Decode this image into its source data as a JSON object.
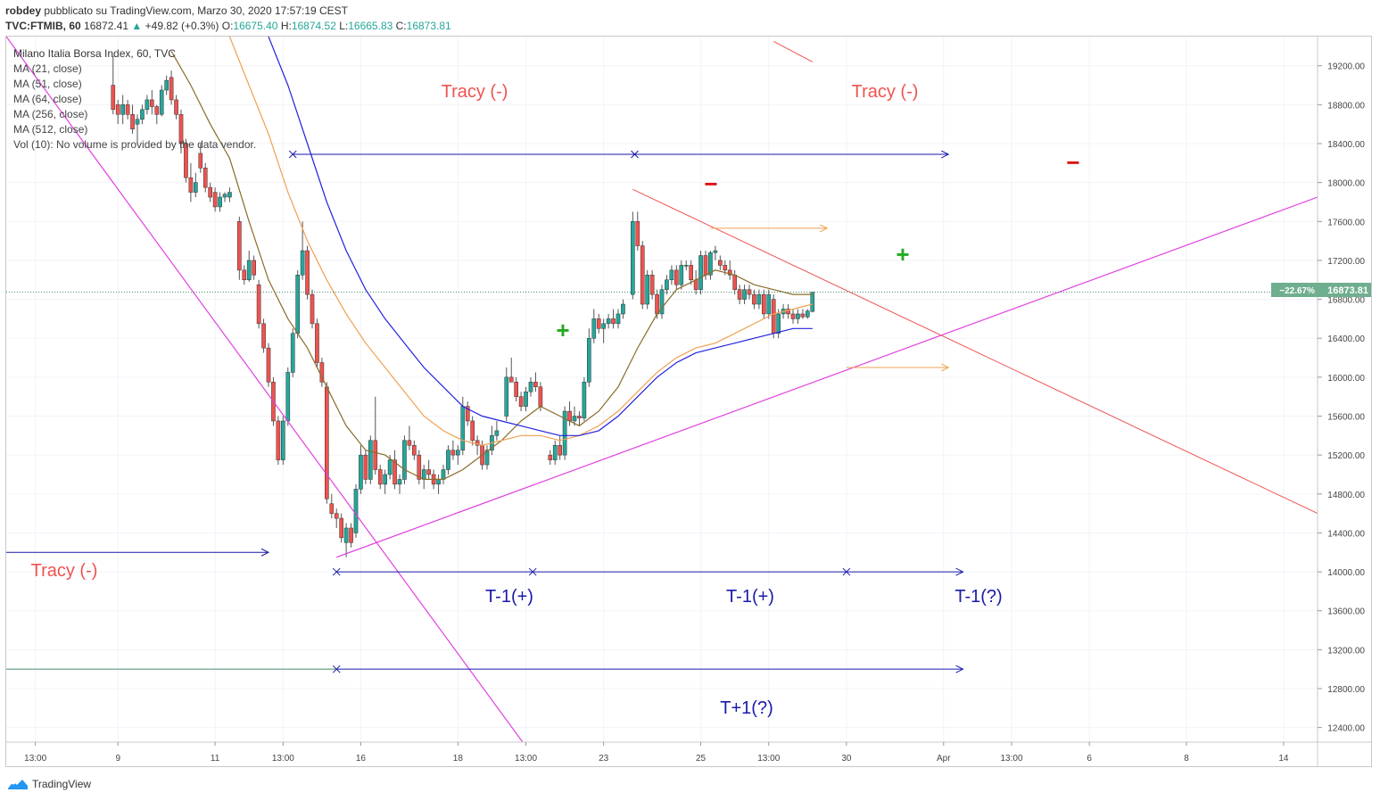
{
  "header": {
    "author": "robdey",
    "published_text": "pubblicato su TradingView.com, Marzo 30, 2020 17:57:19 CEST",
    "symbol": "TVC:FTMIB, 60",
    "last": "16872.41",
    "change_arrow": "▲",
    "change": "+49.82 (+0.3%)",
    "o_label": "O:",
    "o_value": "16675.40",
    "h_label": "H:",
    "h_value": "16874.52",
    "l_label": "L:",
    "l_value": "16665.83",
    "c_label": "C:",
    "c_value": "16873.81"
  },
  "legend": {
    "title": "Milano Italia Borsa Index, 60, TVC",
    "items": [
      "MA (21, close)",
      "MA (51, close)",
      "MA (64, close)",
      "MA (256, close)",
      "MA (512, close)",
      "Vol (10): No volume is provided by the data vendor."
    ]
  },
  "annotations": {
    "tracy_1": "Tracy (-)",
    "tracy_2": "Tracy (-)",
    "tracy_3": "Tracy (-)",
    "t1_a": "T-1(+)",
    "t1_b": "T-1(+)",
    "t1_c": "T-1(?)",
    "t_plus": "T+1(?)",
    "plus_sign": "+",
    "minus_sign": "−"
  },
  "price_tag": {
    "pct": "−22.67%",
    "price": "16873.81"
  },
  "footer": {
    "brand": "TradingView"
  },
  "colors": {
    "up": "#26a69a",
    "down": "#ef5350",
    "ma21": "#8b6b2a",
    "ma51": "#f0a050",
    "ma64": "#2222dd",
    "trend_magenta": "#e040e0",
    "trend_red": "#ef5350",
    "annot_red": "#ef5350",
    "annot_blue": "#1a1aa8",
    "green_plus": "#22aa22"
  },
  "chart_data": {
    "type": "candlestick",
    "symbol": "TVC:FTMIB",
    "timeframe": "60",
    "y_ticks": [
      12400,
      12800,
      13200,
      13600,
      14000,
      14400,
      14800,
      15200,
      15600,
      16000,
      16400,
      16800,
      17200,
      17600,
      18000,
      18400,
      18800,
      19200
    ],
    "y_tick_labels": [
      "12400.00",
      "12800.00",
      "13200.00",
      "13600.00",
      "14000.00",
      "14400.00",
      "14800.00",
      "15200.00",
      "15600.00",
      "16000.00",
      "16400.00",
      "16800.00",
      "17200.00",
      "17600.00",
      "18000.00",
      "18400.00",
      "18800.00",
      "19200.00"
    ],
    "ylim": [
      12250,
      19500
    ],
    "x_ticks": [
      "13:00",
      "9",
      "11",
      "13:00",
      "16",
      "18",
      "13:00",
      "23",
      "25",
      "13:00",
      "30",
      "Apr",
      "13:00",
      "6",
      "8",
      "14"
    ],
    "x_tick_pos": [
      0,
      8.5,
      18.5,
      25.5,
      33.5,
      43.5,
      50.5,
      58.5,
      68.5,
      75.5,
      83.5,
      93.5,
      100.5,
      108.5,
      118.5,
      128.5
    ],
    "xlim": [
      -3,
      132
    ],
    "last_price": 16873.81,
    "candles": [
      [
        8,
        19000,
        19300,
        18700,
        18750
      ],
      [
        8.5,
        18800,
        18850,
        18600,
        18700
      ],
      [
        9,
        18700,
        18900,
        18600,
        18800
      ],
      [
        9.5,
        18800,
        18850,
        18650,
        18700
      ],
      [
        10,
        18700,
        18800,
        18500,
        18550
      ],
      [
        10.5,
        18600,
        18700,
        18400,
        18650
      ],
      [
        11,
        18650,
        18800,
        18600,
        18750
      ],
      [
        11.5,
        18750,
        18900,
        18700,
        18850
      ],
      [
        12,
        18850,
        18950,
        18700,
        18780
      ],
      [
        12.5,
        18780,
        18800,
        18600,
        18700
      ],
      [
        13,
        18700,
        19000,
        18680,
        18950
      ],
      [
        13.5,
        18950,
        19100,
        18900,
        19050
      ],
      [
        14,
        19080,
        19150,
        18800,
        18850
      ],
      [
        14.5,
        18850,
        18900,
        18650,
        18700
      ],
      [
        15,
        18700,
        18750,
        18300,
        18400
      ],
      [
        15.5,
        18400,
        18450,
        18000,
        18050
      ],
      [
        16,
        18050,
        18200,
        17800,
        17900
      ],
      [
        16.5,
        17900,
        18100,
        17850,
        18000
      ],
      [
        17,
        18300,
        18400,
        18100,
        18150
      ],
      [
        17.5,
        18150,
        18200,
        17900,
        17950
      ],
      [
        18,
        17950,
        18000,
        17800,
        17850
      ],
      [
        18.5,
        17900,
        17950,
        17700,
        17750
      ],
      [
        19,
        17750,
        17900,
        17700,
        17850
      ],
      [
        19.5,
        17850,
        17900,
        17800,
        17880
      ],
      [
        20,
        17850,
        17950,
        17800,
        17900
      ],
      [
        21,
        17600,
        17650,
        17000,
        17100
      ],
      [
        21.5,
        17100,
        17150,
        16950,
        17000
      ],
      [
        22,
        17000,
        17300,
        16980,
        17200
      ],
      [
        22.5,
        17200,
        17250,
        17000,
        17050
      ],
      [
        23,
        16950,
        17000,
        16500,
        16550
      ],
      [
        23.5,
        16550,
        16600,
        16250,
        16300
      ],
      [
        24,
        16300,
        16350,
        15900,
        15950
      ],
      [
        24.5,
        15950,
        16000,
        15500,
        15550
      ],
      [
        25,
        15550,
        15600,
        15100,
        15150
      ],
      [
        25.5,
        15150,
        15600,
        15100,
        15550
      ],
      [
        26,
        15550,
        16100,
        15500,
        16050
      ],
      [
        26.5,
        16050,
        16500,
        16000,
        16450
      ],
      [
        27,
        16450,
        17100,
        16400,
        17050
      ],
      [
        27.5,
        17050,
        17600,
        17000,
        17300
      ],
      [
        28,
        17300,
        17350,
        16800,
        16850
      ],
      [
        28.5,
        16850,
        16900,
        16500,
        16550
      ],
      [
        29,
        16550,
        16600,
        16100,
        16150
      ],
      [
        29.5,
        16150,
        16200,
        15900,
        15950
      ],
      [
        30,
        15900,
        15950,
        14700,
        14750
      ],
      [
        30.5,
        14700,
        14800,
        14550,
        14600
      ],
      [
        31,
        14600,
        14650,
        14450,
        14550
      ],
      [
        31.5,
        14550,
        14600,
        14300,
        14350
      ],
      [
        32,
        14300,
        14500,
        14150,
        14450
      ],
      [
        32.5,
        14450,
        14500,
        14250,
        14300
      ],
      [
        33,
        14400,
        14900,
        14350,
        14850
      ],
      [
        33.5,
        14850,
        15300,
        14800,
        15200
      ],
      [
        34,
        15200,
        15250,
        14900,
        14950
      ],
      [
        34.5,
        14950,
        15400,
        14900,
        15350
      ],
      [
        35,
        15350,
        15800,
        15000,
        15050
      ],
      [
        35.5,
        15050,
        15100,
        14850,
        14900
      ],
      [
        36,
        14900,
        15050,
        14800,
        15000
      ],
      [
        36.5,
        15000,
        15200,
        14950,
        15150
      ],
      [
        37,
        15150,
        15250,
        14850,
        14900
      ],
      [
        37.5,
        14900,
        15000,
        14800,
        14950
      ],
      [
        38,
        14950,
        15400,
        14900,
        15350
      ],
      [
        38.5,
        15350,
        15500,
        15250,
        15300
      ],
      [
        39,
        15300,
        15350,
        15150,
        15200
      ],
      [
        39.5,
        15200,
        15250,
        14900,
        14950
      ],
      [
        40,
        14950,
        15100,
        14850,
        15050
      ],
      [
        40.5,
        15050,
        15150,
        14950,
        15000
      ],
      [
        41,
        15000,
        15050,
        14850,
        14900
      ],
      [
        41.5,
        14900,
        15000,
        14800,
        14950
      ],
      [
        42,
        14950,
        15100,
        14900,
        15050
      ],
      [
        42.5,
        15050,
        15300,
        15000,
        15250
      ],
      [
        43,
        15250,
        15350,
        15150,
        15200
      ],
      [
        43.5,
        15200,
        15300,
        15100,
        15250
      ],
      [
        44,
        15250,
        15800,
        15200,
        15700
      ],
      [
        44.5,
        15700,
        15750,
        15500,
        15550
      ],
      [
        45,
        15550,
        15600,
        15300,
        15350
      ],
      [
        45.5,
        15350,
        15400,
        15200,
        15300
      ],
      [
        46,
        15300,
        15350,
        15050,
        15100
      ],
      [
        46.5,
        15100,
        15300,
        15050,
        15250
      ],
      [
        47,
        15250,
        15500,
        15200,
        15400
      ],
      [
        47.5,
        15400,
        15550,
        15350,
        15450
      ],
      [
        48.5,
        15600,
        16100,
        15550,
        16000
      ],
      [
        49,
        16000,
        16200,
        15950,
        15950
      ],
      [
        49.5,
        15950,
        16000,
        15750,
        15800
      ],
      [
        50,
        15800,
        15850,
        15650,
        15700
      ],
      [
        50.5,
        15700,
        15900,
        15650,
        15850
      ],
      [
        51,
        15850,
        16000,
        15800,
        15950
      ],
      [
        51.5,
        15950,
        16050,
        15850,
        15900
      ],
      [
        52,
        15900,
        15950,
        15650,
        15700
      ],
      [
        53,
        15200,
        15250,
        15100,
        15150
      ],
      [
        53.5,
        15150,
        15350,
        15100,
        15300
      ],
      [
        54,
        15300,
        15400,
        15150,
        15200
      ],
      [
        54.5,
        15200,
        15700,
        15150,
        15650
      ],
      [
        55,
        15650,
        15750,
        15500,
        15550
      ],
      [
        55.5,
        15550,
        15700,
        15500,
        15600
      ],
      [
        56,
        15600,
        15650,
        15500,
        15580
      ],
      [
        56.5,
        15580,
        16000,
        15550,
        15950
      ],
      [
        57,
        15950,
        16500,
        15900,
        16400
      ],
      [
        57.5,
        16400,
        16700,
        16350,
        16600
      ],
      [
        58,
        16600,
        16650,
        16450,
        16500
      ],
      [
        58.5,
        16500,
        16600,
        16350,
        16550
      ],
      [
        59,
        16550,
        16650,
        16500,
        16600
      ],
      [
        59.5,
        16600,
        16700,
        16500,
        16550
      ],
      [
        60,
        16550,
        16700,
        16500,
        16650
      ],
      [
        60.5,
        16650,
        16800,
        16600,
        16750
      ],
      [
        61.5,
        16850,
        17700,
        16800,
        17600
      ],
      [
        62,
        17600,
        17700,
        17300,
        17350
      ],
      [
        62.5,
        17350,
        17400,
        16700,
        16750
      ],
      [
        63,
        16750,
        17100,
        16700,
        17050
      ],
      [
        63.5,
        17050,
        17100,
        16800,
        16850
      ],
      [
        64,
        16850,
        16900,
        16600,
        16650
      ],
      [
        64.5,
        16650,
        16950,
        16600,
        16900
      ],
      [
        65,
        16900,
        17050,
        16850,
        17000
      ],
      [
        65.5,
        17000,
        17150,
        16950,
        17100
      ],
      [
        66,
        17100,
        17150,
        16900,
        16950
      ],
      [
        66.5,
        16950,
        17200,
        16900,
        17150
      ],
      [
        67,
        17150,
        17200,
        17100,
        17150
      ],
      [
        67.5,
        17150,
        17200,
        16950,
        17000
      ],
      [
        68,
        17000,
        17100,
        16850,
        16900
      ],
      [
        68.5,
        16900,
        17300,
        16850,
        17250
      ],
      [
        69,
        17250,
        17300,
        17000,
        17050
      ],
      [
        69.5,
        17050,
        17300,
        17000,
        17280
      ],
      [
        70,
        17280,
        17350,
        17200,
        17300
      ],
      [
        70.5,
        17200,
        17250,
        17100,
        17150
      ],
      [
        71,
        17150,
        17200,
        17050,
        17100
      ],
      [
        71.5,
        17100,
        17200,
        17000,
        17050
      ],
      [
        72,
        17050,
        17100,
        16850,
        16900
      ],
      [
        72.5,
        16900,
        16950,
        16750,
        16800
      ],
      [
        73,
        16800,
        16950,
        16750,
        16900
      ],
      [
        73.5,
        16900,
        16950,
        16800,
        16850
      ],
      [
        74,
        16850,
        16900,
        16700,
        16750
      ],
      [
        74.5,
        16750,
        16900,
        16700,
        16850
      ],
      [
        75,
        16850,
        16900,
        16600,
        16650
      ],
      [
        75.5,
        16650,
        16900,
        16600,
        16850
      ],
      [
        76,
        16800,
        16850,
        16400,
        16450
      ],
      [
        76.5,
        16450,
        16700,
        16400,
        16650
      ],
      [
        77,
        16650,
        16750,
        16600,
        16700
      ],
      [
        77.5,
        16700,
        16750,
        16600,
        16650
      ],
      [
        78,
        16650,
        16700,
        16550,
        16600
      ],
      [
        78.5,
        16600,
        16700,
        16550,
        16650
      ],
      [
        79,
        16650,
        16700,
        16600,
        16620
      ],
      [
        79.5,
        16620,
        16700,
        16600,
        16680
      ],
      [
        80,
        16675.4,
        16874.52,
        16665.83,
        16873.81
      ]
    ],
    "series": [
      {
        "name": "MA (21, close)",
        "x": [
          14,
          16,
          18,
          20,
          22,
          24,
          26,
          28,
          30,
          32,
          34,
          36,
          38,
          40,
          42,
          44,
          46,
          48,
          50,
          52,
          54,
          56,
          58,
          60,
          62,
          64,
          66,
          68,
          70,
          72,
          74,
          76,
          78,
          80
        ],
        "values": [
          19350,
          19000,
          18600,
          18250,
          17600,
          17000,
          16600,
          16300,
          15900,
          15500,
          15250,
          15200,
          15050,
          14950,
          14950,
          15050,
          15200,
          15350,
          15550,
          15700,
          15600,
          15500,
          15650,
          15900,
          16300,
          16650,
          16900,
          17000,
          17100,
          17050,
          16950,
          16900,
          16850,
          16850
        ]
      },
      {
        "name": "MA (51, close)",
        "x": [
          20,
          22,
          24,
          26,
          28,
          30,
          32,
          34,
          36,
          38,
          40,
          42,
          44,
          46,
          48,
          50,
          52,
          54,
          56,
          58,
          60,
          62,
          64,
          66,
          68,
          70,
          72,
          74,
          76,
          78,
          80
        ],
        "values": [
          19500,
          19000,
          18500,
          17900,
          17400,
          17000,
          16650,
          16350,
          16100,
          15850,
          15600,
          15450,
          15350,
          15300,
          15350,
          15400,
          15400,
          15350,
          15400,
          15500,
          15650,
          15850,
          16050,
          16200,
          16300,
          16350,
          16450,
          16550,
          16650,
          16700,
          16750
        ]
      },
      {
        "name": "MA (64, close)",
        "x": [
          24,
          26,
          28,
          30,
          32,
          34,
          36,
          38,
          40,
          42,
          44,
          46,
          48,
          50,
          52,
          54,
          56,
          58,
          60,
          62,
          64,
          66,
          68,
          70,
          72,
          74,
          76,
          78,
          80
        ],
        "values": [
          19500,
          19000,
          18400,
          17800,
          17300,
          16900,
          16600,
          16350,
          16100,
          15900,
          15700,
          15600,
          15550,
          15500,
          15450,
          15400,
          15400,
          15450,
          15600,
          15800,
          16000,
          16150,
          16250,
          16300,
          16350,
          16400,
          16450,
          16500,
          16500
        ]
      }
    ]
  }
}
